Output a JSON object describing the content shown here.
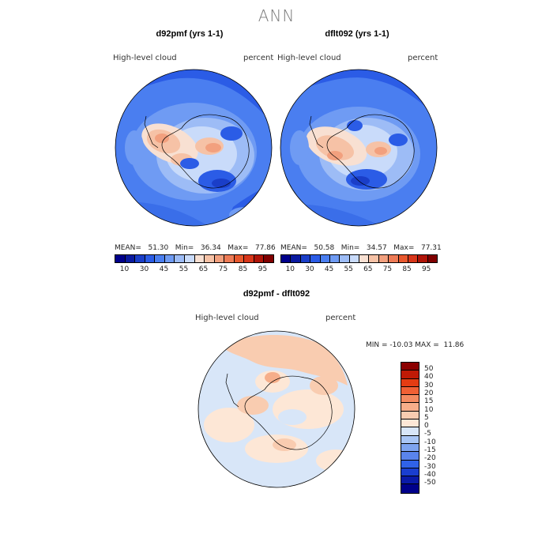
{
  "season": "ANN",
  "panels": {
    "left": {
      "title": "d92pmf (yrs 1-1)",
      "variable": "High-level cloud",
      "units": "percent",
      "stats": "MEAN=   51.30   Min=   36.34   Max=   77.86"
    },
    "right": {
      "title": "dflt092 (yrs 1-1)",
      "variable": "High-level cloud",
      "units": "percent",
      "stats": "MEAN=   50.58   Min=   34.57   Max=   77.31"
    },
    "diff": {
      "title": "d92pmf - dflt092",
      "variable": "High-level cloud",
      "units": "percent",
      "stats": "MIN = -10.03 MAX =  11.86"
    }
  },
  "colorbar_top": {
    "labels": [
      "10",
      "30",
      "45",
      "55",
      "65",
      "75",
      "85",
      "95"
    ],
    "colors": [
      "#00008b",
      "#0a1aa0",
      "#1a3ec8",
      "#2b5ce6",
      "#4a7ef0",
      "#6f9bf3",
      "#9dbcf6",
      "#c9dbfa",
      "#f8e0d2",
      "#f6c2a6",
      "#f2a07e",
      "#ee7b56",
      "#e8582e",
      "#d8361a",
      "#b01408",
      "#800000"
    ]
  },
  "colorbar_diff": {
    "labels": [
      "50",
      "40",
      "30",
      "20",
      "15",
      "10",
      "5",
      "0",
      "-5",
      "-10",
      "-15",
      "-20",
      "-30",
      "-40",
      "-50"
    ],
    "colors": [
      "#8b0000",
      "#c01a06",
      "#e43c12",
      "#f06034",
      "#f38a60",
      "#f6ae8a",
      "#f9ccb0",
      "#fde7d6",
      "#d8e6f8",
      "#a9c6f5",
      "#7ea4ef",
      "#5a84ec",
      "#3062e8",
      "#1a3ecf",
      "#0a1aa8",
      "#00008b"
    ]
  }
}
